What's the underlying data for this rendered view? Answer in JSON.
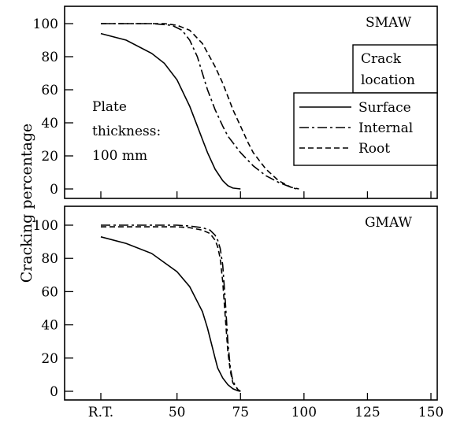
{
  "chart_data": {
    "type": "line",
    "ylabel": "Cracking percentage",
    "x_tick_labels": [
      "R.T.",
      "50",
      "75",
      "100",
      "125",
      "150"
    ],
    "x_tick_values": [
      20,
      50,
      75,
      100,
      125,
      150
    ],
    "xlim": [
      8,
      152
    ],
    "ylim": [
      0,
      110
    ],
    "y_ticks": [
      0,
      20,
      40,
      60,
      80,
      100
    ],
    "legend": {
      "title_line1": "Crack",
      "title_line2": "location",
      "placement": "right",
      "entries": [
        {
          "label": "Surface",
          "style": "solid"
        },
        {
          "label": "Internal",
          "style": "dashdot"
        },
        {
          "label": "Root",
          "style": "dashed"
        }
      ]
    },
    "panels": [
      {
        "title": "SMAW",
        "annotation": [
          "Plate",
          "thickness:",
          "100 mm"
        ],
        "series": [
          {
            "name": "Surface",
            "style": "solid",
            "x": [
              20,
              30,
              40,
              45,
              50,
              55,
              58,
              60,
              62,
              65,
              68,
              70,
              72,
              75
            ],
            "y": [
              94,
              90,
              82,
              76,
              66,
              50,
              38,
              30,
              22,
              12,
              5,
              2,
              0.5,
              0
            ]
          },
          {
            "name": "Internal",
            "style": "dashdot",
            "x": [
              20,
              40,
              48,
              52,
              55,
              58,
              60,
              62,
              65,
              68,
              70,
              75,
              80,
              85,
              90,
              95,
              97
            ],
            "y": [
              100,
              100,
              99,
              96,
              90,
              80,
              70,
              60,
              48,
              38,
              32,
              22,
              14,
              8,
              4,
              1,
              0
            ]
          },
          {
            "name": "Root",
            "style": "dashed",
            "x": [
              20,
              45,
              50,
              55,
              60,
              65,
              68,
              70,
              72,
              75,
              78,
              80,
              85,
              90,
              95,
              98
            ],
            "y": [
              100,
              100,
              99,
              96,
              88,
              74,
              64,
              56,
              48,
              38,
              28,
              22,
              12,
              5,
              1,
              0
            ]
          }
        ]
      },
      {
        "title": "GMAW",
        "series": [
          {
            "name": "Surface",
            "style": "solid",
            "x": [
              20,
              30,
              40,
              50,
              55,
              60,
              62,
              63,
              64,
              65,
              66,
              68,
              70,
              72,
              74,
              75
            ],
            "y": [
              93,
              89,
              83,
              72,
              63,
              48,
              38,
              32,
              26,
              20,
              14,
              8,
              4,
              1.5,
              0.3,
              0
            ]
          },
          {
            "name": "Internal",
            "style": "dashdot",
            "x": [
              20,
              50,
              55,
              60,
              63,
              65,
              66,
              67,
              68,
              69,
              70,
              71,
              72,
              74,
              75
            ],
            "y": [
              100,
              100,
              99.5,
              98.5,
              97,
              94,
              91,
              86,
              76,
              55,
              30,
              14,
              6,
              1,
              0
            ]
          },
          {
            "name": "Root",
            "style": "dashed",
            "x": [
              20,
              50,
              55,
              60,
              63,
              65,
              66,
              67,
              68,
              69,
              70,
              71,
              72,
              74,
              75
            ],
            "y": [
              99,
              99,
              98.5,
              97,
              95,
              91,
              87,
              80,
              66,
              45,
              24,
              12,
              5,
              1,
              0
            ]
          }
        ]
      }
    ]
  }
}
